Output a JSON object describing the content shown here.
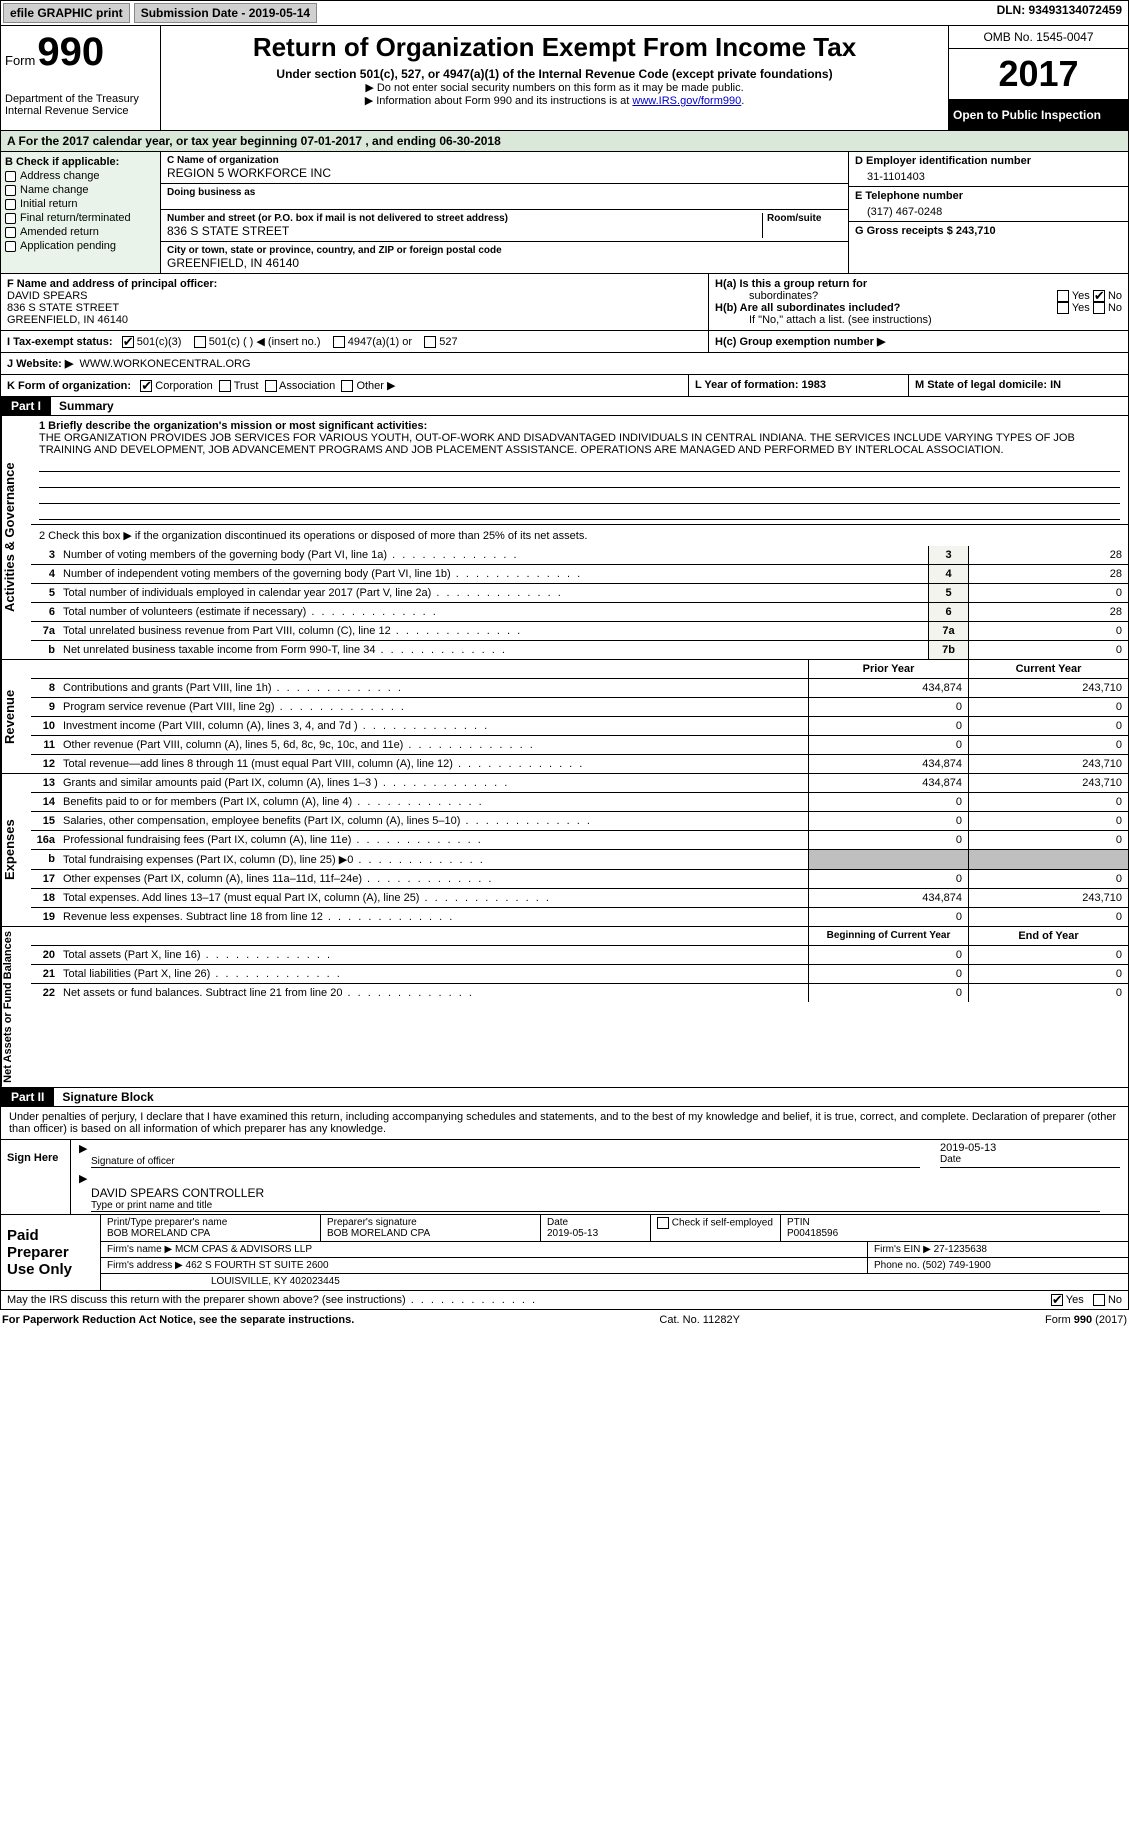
{
  "topbar": {
    "efile": "efile GRAPHIC print",
    "submission_label": "Submission Date - 2019-05-14",
    "dln": "DLN: 93493134072459"
  },
  "header": {
    "form_word": "Form",
    "form_num": "990",
    "dept": "Department of the Treasury",
    "irs": "Internal Revenue Service",
    "title": "Return of Organization Exempt From Income Tax",
    "subtitle": "Under section 501(c), 527, or 4947(a)(1) of the Internal Revenue Code (except private foundations)",
    "note1": "▶ Do not enter social security numbers on this form as it may be made public.",
    "note2_pre": "▶ Information about Form 990 and its instructions is at ",
    "note2_link": "www.IRS.gov/form990",
    "omb": "OMB No. 1545-0047",
    "year": "2017",
    "inspect": "Open to Public Inspection"
  },
  "section_a": "A  For the 2017 calendar year, or tax year beginning 07-01-2017   , and ending 06-30-2018",
  "col_b": {
    "header": "B Check if applicable:",
    "items": [
      "Address change",
      "Name change",
      "Initial return",
      "Final return/terminated",
      "Amended return",
      "Application pending"
    ]
  },
  "col_c": {
    "name_label": "C Name of organization",
    "name": "REGION 5 WORKFORCE INC",
    "dba_label": "Doing business as",
    "addr_label": "Number and street (or P.O. box if mail is not delivered to street address)",
    "room_label": "Room/suite",
    "addr": "836 S STATE STREET",
    "city_label": "City or town, state or province, country, and ZIP or foreign postal code",
    "city": "GREENFIELD, IN  46140"
  },
  "col_de": {
    "d_label": "D Employer identification number",
    "d_val": "31-1101403",
    "e_label": "E Telephone number",
    "e_val": "(317) 467-0248",
    "g_label": "G Gross receipts $ 243,710"
  },
  "row_f": {
    "label": "F  Name and address of principal officer:",
    "name": "DAVID SPEARS",
    "addr1": "836 S STATE STREET",
    "addr2": "GREENFIELD, IN  46140"
  },
  "row_h": {
    "ha": "H(a)  Is this a group return for",
    "ha2": "subordinates?",
    "hb": "H(b)  Are all subordinates included?",
    "hb_note": "If \"No,\" attach a list. (see instructions)",
    "hc": "H(c)  Group exemption number ▶",
    "yes": "Yes",
    "no": "No"
  },
  "row_i": "I  Tax-exempt status:",
  "row_i_opts": [
    "501(c)(3)",
    "501(c) (   ) ◀ (insert no.)",
    "4947(a)(1) or",
    "527"
  ],
  "row_j": {
    "label": "J  Website: ▶",
    "val": "WWW.WORKONECENTRAL.ORG"
  },
  "row_k": {
    "label": "K Form of organization:",
    "opts": [
      "Corporation",
      "Trust",
      "Association",
      "Other ▶"
    ],
    "l": "L Year of formation: 1983",
    "m": "M State of legal domicile: IN"
  },
  "part1": {
    "tag": "Part I",
    "title": "Summary"
  },
  "governance": {
    "side": "Activities & Governance",
    "line1_label": "1  Briefly describe the organization's mission or most significant activities:",
    "mission": "THE ORGANIZATION PROVIDES JOB SERVICES FOR VARIOUS YOUTH, OUT-OF-WORK AND DISADVANTAGED INDIVIDUALS IN CENTRAL INDIANA. THE SERVICES INCLUDE VARYING TYPES OF JOB TRAINING AND DEVELOPMENT, JOB ADVANCEMENT PROGRAMS AND JOB PLACEMENT ASSISTANCE. OPERATIONS ARE MANAGED AND PERFORMED BY INTERLOCAL ASSOCIATION.",
    "line2": "2   Check this box ▶      if the organization discontinued its operations or disposed of more than 25% of its net assets.",
    "rows": [
      {
        "n": "3",
        "desc": "Number of voting members of the governing body (Part VI, line 1a)",
        "box": "3",
        "val": "28"
      },
      {
        "n": "4",
        "desc": "Number of independent voting members of the governing body (Part VI, line 1b)",
        "box": "4",
        "val": "28"
      },
      {
        "n": "5",
        "desc": "Total number of individuals employed in calendar year 2017 (Part V, line 2a)",
        "box": "5",
        "val": "0"
      },
      {
        "n": "6",
        "desc": "Total number of volunteers (estimate if necessary)",
        "box": "6",
        "val": "28"
      },
      {
        "n": "7a",
        "desc": "Total unrelated business revenue from Part VIII, column (C), line 12",
        "box": "7a",
        "val": "0"
      },
      {
        "n": "b",
        "desc": "Net unrelated business taxable income from Form 990-T, line 34",
        "box": "7b",
        "val": "0"
      }
    ]
  },
  "revenue": {
    "side": "Revenue",
    "head_prior": "Prior Year",
    "head_curr": "Current Year",
    "rows": [
      {
        "n": "8",
        "desc": "Contributions and grants (Part VIII, line 1h)",
        "prior": "434,874",
        "curr": "243,710"
      },
      {
        "n": "9",
        "desc": "Program service revenue (Part VIII, line 2g)",
        "prior": "0",
        "curr": "0"
      },
      {
        "n": "10",
        "desc": "Investment income (Part VIII, column (A), lines 3, 4, and 7d )",
        "prior": "0",
        "curr": "0"
      },
      {
        "n": "11",
        "desc": "Other revenue (Part VIII, column (A), lines 5, 6d, 8c, 9c, 10c, and 11e)",
        "prior": "0",
        "curr": "0"
      },
      {
        "n": "12",
        "desc": "Total revenue—add lines 8 through 11 (must equal Part VIII, column (A), line 12)",
        "prior": "434,874",
        "curr": "243,710"
      }
    ]
  },
  "expenses": {
    "side": "Expenses",
    "rows": [
      {
        "n": "13",
        "desc": "Grants and similar amounts paid (Part IX, column (A), lines 1–3 )",
        "prior": "434,874",
        "curr": "243,710"
      },
      {
        "n": "14",
        "desc": "Benefits paid to or for members (Part IX, column (A), line 4)",
        "prior": "0",
        "curr": "0"
      },
      {
        "n": "15",
        "desc": "Salaries, other compensation, employee benefits (Part IX, column (A), lines 5–10)",
        "prior": "0",
        "curr": "0"
      },
      {
        "n": "16a",
        "desc": "Professional fundraising fees (Part IX, column (A), line 11e)",
        "prior": "0",
        "curr": "0"
      },
      {
        "n": "b",
        "desc": "Total fundraising expenses (Part IX, column (D), line 25) ▶0",
        "prior": "shade",
        "curr": "shade"
      },
      {
        "n": "17",
        "desc": "Other expenses (Part IX, column (A), lines 11a–11d, 11f–24e)",
        "prior": "0",
        "curr": "0"
      },
      {
        "n": "18",
        "desc": "Total expenses. Add lines 13–17 (must equal Part IX, column (A), line 25)",
        "prior": "434,874",
        "curr": "243,710"
      },
      {
        "n": "19",
        "desc": "Revenue less expenses. Subtract line 18 from line 12",
        "prior": "0",
        "curr": "0"
      }
    ]
  },
  "netassets": {
    "side": "Net Assets or Fund Balances",
    "head_prior": "Beginning of Current Year",
    "head_curr": "End of Year",
    "rows": [
      {
        "n": "20",
        "desc": "Total assets (Part X, line 16)",
        "prior": "0",
        "curr": "0"
      },
      {
        "n": "21",
        "desc": "Total liabilities (Part X, line 26)",
        "prior": "0",
        "curr": "0"
      },
      {
        "n": "22",
        "desc": "Net assets or fund balances. Subtract line 21 from line 20",
        "prior": "0",
        "curr": "0"
      }
    ]
  },
  "part2": {
    "tag": "Part II",
    "title": "Signature Block"
  },
  "declaration": "Under penalties of perjury, I declare that I have examined this return, including accompanying schedules and statements, and to the best of my knowledge and belief, it is true, correct, and complete. Declaration of preparer (other than officer) is based on all information of which preparer has any knowledge.",
  "sign": {
    "label": "Sign Here",
    "sig_label": "Signature of officer",
    "date": "2019-05-13",
    "date_label": "Date",
    "name": "DAVID SPEARS CONTROLLER",
    "name_label": "Type or print name and title"
  },
  "preparer": {
    "label": "Paid Preparer Use Only",
    "name_label": "Print/Type preparer's name",
    "name": "BOB MORELAND CPA",
    "sig_label": "Preparer's signature",
    "sig": "BOB MORELAND CPA",
    "date_label": "Date",
    "date": "2019-05-13",
    "check_label": "Check       if self-employed",
    "ptin_label": "PTIN",
    "ptin": "P00418596",
    "firm_name_label": "Firm's name     ▶",
    "firm_name": "MCM CPAS & ADVISORS LLP",
    "firm_ein_label": "Firm's EIN ▶",
    "firm_ein": "27-1235638",
    "firm_addr_label": "Firm's address ▶",
    "firm_addr1": "462 S FOURTH ST SUITE 2600",
    "firm_addr2": "LOUISVILLE, KY  402023445",
    "phone_label": "Phone no.",
    "phone": "(502) 749-1900"
  },
  "discuss": {
    "text": "May the IRS discuss this return with the preparer shown above? (see instructions)",
    "yes": "Yes",
    "no": "No"
  },
  "footer": {
    "left": "For Paperwork Reduction Act Notice, see the separate instructions.",
    "mid": "Cat. No. 11282Y",
    "right": "Form 990 (2017)"
  }
}
